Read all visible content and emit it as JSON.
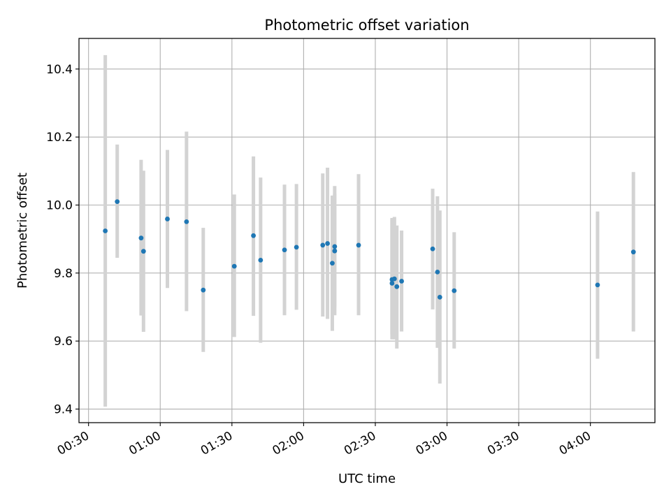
{
  "chart_data": {
    "type": "scatter",
    "title": "Photometric offset variation",
    "xlabel": "UTC time",
    "ylabel": "Photometric offset",
    "x_tick_labels": [
      "00:30",
      "01:00",
      "01:30",
      "02:00",
      "02:30",
      "03:00",
      "03:30",
      "04:00"
    ],
    "x_tick_minutes": [
      30,
      60,
      90,
      120,
      150,
      180,
      210,
      240
    ],
    "y_ticks": [
      9.4,
      9.6,
      9.8,
      10.0,
      10.2,
      10.4
    ],
    "y_tick_labels": [
      "9.4",
      "9.6",
      "9.8",
      "10.0",
      "10.2",
      "10.4"
    ],
    "xlim": [
      "00:26",
      "04:27"
    ],
    "ylim": [
      9.36,
      10.49
    ],
    "grid": true,
    "colors": {
      "marker": "#1f77b4",
      "errorbar": "#d3d3d3",
      "grid": "#b0b0b0"
    },
    "points": [
      {
        "t": "00:37",
        "y": 9.924,
        "lo": 9.407,
        "hi": 10.441
      },
      {
        "t": "00:42",
        "y": 10.01,
        "lo": 9.845,
        "hi": 10.178
      },
      {
        "t": "00:52",
        "y": 9.903,
        "lo": 9.675,
        "hi": 10.133
      },
      {
        "t": "00:53",
        "y": 9.864,
        "lo": 9.627,
        "hi": 10.101
      },
      {
        "t": "01:03",
        "y": 9.959,
        "lo": 9.756,
        "hi": 10.162
      },
      {
        "t": "01:11",
        "y": 9.951,
        "lo": 9.688,
        "hi": 10.216
      },
      {
        "t": "01:18",
        "y": 9.75,
        "lo": 9.568,
        "hi": 9.933
      },
      {
        "t": "01:31",
        "y": 9.82,
        "lo": 9.612,
        "hi": 10.031
      },
      {
        "t": "01:39",
        "y": 9.91,
        "lo": 9.674,
        "hi": 10.143
      },
      {
        "t": "01:42",
        "y": 9.838,
        "lo": 9.595,
        "hi": 10.081
      },
      {
        "t": "01:52",
        "y": 9.868,
        "lo": 9.676,
        "hi": 10.06
      },
      {
        "t": "01:57",
        "y": 9.876,
        "lo": 9.692,
        "hi": 10.062
      },
      {
        "t": "02:08",
        "y": 9.882,
        "lo": 9.672,
        "hi": 10.093
      },
      {
        "t": "02:10",
        "y": 9.887,
        "lo": 9.665,
        "hi": 10.11
      },
      {
        "t": "02:12",
        "y": 9.829,
        "lo": 9.63,
        "hi": 10.028
      },
      {
        "t": "02:13",
        "y": 9.878,
        "lo": 9.7,
        "hi": 10.033
      },
      {
        "t": "02:13",
        "y": 9.865,
        "lo": 9.676,
        "hi": 10.056
      },
      {
        "t": "02:23",
        "y": 9.882,
        "lo": 9.676,
        "hi": 10.091
      },
      {
        "t": "02:37",
        "y": 9.781,
        "lo": 9.605,
        "hi": 9.958
      },
      {
        "t": "02:37",
        "y": 9.77,
        "lo": 9.62,
        "hi": 9.962
      },
      {
        "t": "02:38",
        "y": 9.783,
        "lo": 9.605,
        "hi": 9.965
      },
      {
        "t": "02:39",
        "y": 9.76,
        "lo": 9.578,
        "hi": 9.94
      },
      {
        "t": "02:41",
        "y": 9.776,
        "lo": 9.628,
        "hi": 9.925
      },
      {
        "t": "02:54",
        "y": 9.871,
        "lo": 9.693,
        "hi": 10.048
      },
      {
        "t": "02:56",
        "y": 9.803,
        "lo": 9.58,
        "hi": 10.026
      },
      {
        "t": "02:57",
        "y": 9.729,
        "lo": 9.475,
        "hi": 9.984
      },
      {
        "t": "03:03",
        "y": 9.748,
        "lo": 9.578,
        "hi": 9.92
      },
      {
        "t": "04:03",
        "y": 9.765,
        "lo": 9.548,
        "hi": 9.981
      },
      {
        "t": "04:18",
        "y": 9.862,
        "lo": 9.628,
        "hi": 10.097
      }
    ]
  }
}
